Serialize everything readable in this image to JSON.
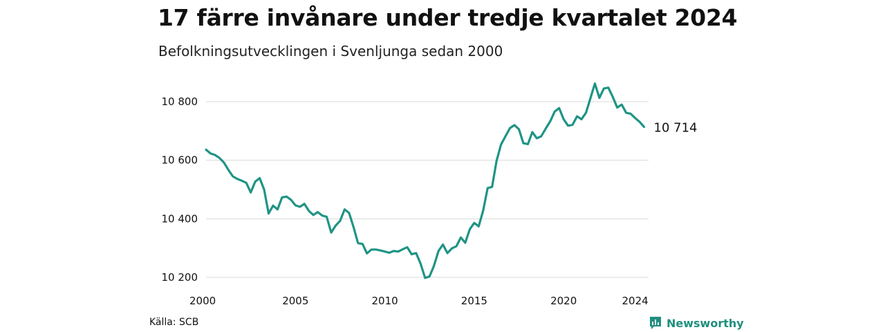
{
  "header": {
    "title": "17 färre invånare under tredje kvartalet 2024",
    "subtitle": "Befolkningsutvecklingen i Svenljunga sedan 2000"
  },
  "footer": {
    "source": "Källa: SCB",
    "brand": "Newsworthy",
    "brand_icon": "newsworthy-logo-icon"
  },
  "colors": {
    "line": "#1f9484",
    "grid": "#d9d9d9",
    "brand": "#1f8f7e"
  },
  "chart_data": {
    "type": "line",
    "title": "17 färre invånare under tredje kvartalet 2024",
    "subtitle": "Befolkningsutvecklingen i Svenljunga sedan 2000",
    "xlabel": "",
    "ylabel": "",
    "x_ticks": [
      2000,
      2005,
      2010,
      2015,
      2020,
      2024
    ],
    "x_tick_labels": [
      "2000",
      "2005",
      "2010",
      "2015",
      "2020",
      "2024"
    ],
    "y_ticks": [
      10200,
      10400,
      10600,
      10800
    ],
    "y_tick_labels": [
      "10 200",
      "10 400",
      "10 600",
      "10 800"
    ],
    "xlim": [
      2000,
      2024.75
    ],
    "ylim": [
      10200,
      10870
    ],
    "grid": true,
    "end_label": "10 714",
    "series": [
      {
        "x": [
          2000.0,
          2000.25,
          2000.5,
          2000.75,
          2001.0,
          2001.25,
          2001.5,
          2001.75,
          2002.0,
          2002.25,
          2002.5,
          2002.75,
          2003.0,
          2003.25,
          2003.5,
          2003.75,
          2004.0,
          2004.25,
          2004.5,
          2004.75,
          2005.0,
          2005.25,
          2005.5,
          2005.75,
          2006.0,
          2006.25,
          2006.5,
          2006.75,
          2007.0,
          2007.25,
          2007.5,
          2007.75,
          2008.0,
          2008.25,
          2008.5,
          2008.75,
          2009.0,
          2009.25,
          2009.5,
          2009.75,
          2010.0,
          2010.25,
          2010.5,
          2010.75,
          2011.0,
          2011.25,
          2011.5,
          2011.75,
          2012.0,
          2012.25,
          2012.5,
          2012.75,
          2013.0,
          2013.25,
          2013.5,
          2013.75,
          2014.0,
          2014.25,
          2014.5,
          2014.75,
          2015.0,
          2015.25,
          2015.5,
          2015.75,
          2016.0,
          2016.25,
          2016.5,
          2016.75,
          2017.0,
          2017.25,
          2017.5,
          2017.75,
          2018.0,
          2018.25,
          2018.5,
          2018.75,
          2019.0,
          2019.25,
          2019.5,
          2019.75,
          2020.0,
          2020.25,
          2020.5,
          2020.75,
          2021.0,
          2021.25,
          2021.5,
          2021.75,
          2022.0,
          2022.25,
          2022.5,
          2022.75,
          2023.0,
          2023.25,
          2023.5,
          2023.75,
          2024.0,
          2024.25,
          2024.5
        ],
        "values": [
          10636,
          10623,
          10618,
          10608,
          10592,
          10567,
          10545,
          10536,
          10530,
          10523,
          10490,
          10527,
          10539,
          10500,
          10418,
          10445,
          10432,
          10473,
          10476,
          10465,
          10446,
          10441,
          10451,
          10427,
          10413,
          10423,
          10411,
          10407,
          10353,
          10377,
          10393,
          10432,
          10420,
          10372,
          10317,
          10314,
          10282,
          10295,
          10295,
          10292,
          10288,
          10284,
          10290,
          10288,
          10296,
          10303,
          10279,
          10283,
          10247,
          10198,
          10203,
          10240,
          10290,
          10312,
          10283,
          10299,
          10306,
          10336,
          10318,
          10364,
          10386,
          10374,
          10428,
          10505,
          10509,
          10598,
          10654,
          10682,
          10710,
          10720,
          10706,
          10658,
          10655,
          10696,
          10675,
          10682,
          10708,
          10733,
          10766,
          10778,
          10740,
          10718,
          10721,
          10750,
          10740,
          10762,
          10812,
          10862,
          10813,
          10845,
          10848,
          10816,
          10780,
          10790,
          10762,
          10759,
          10744,
          10731,
          10714
        ]
      }
    ]
  }
}
